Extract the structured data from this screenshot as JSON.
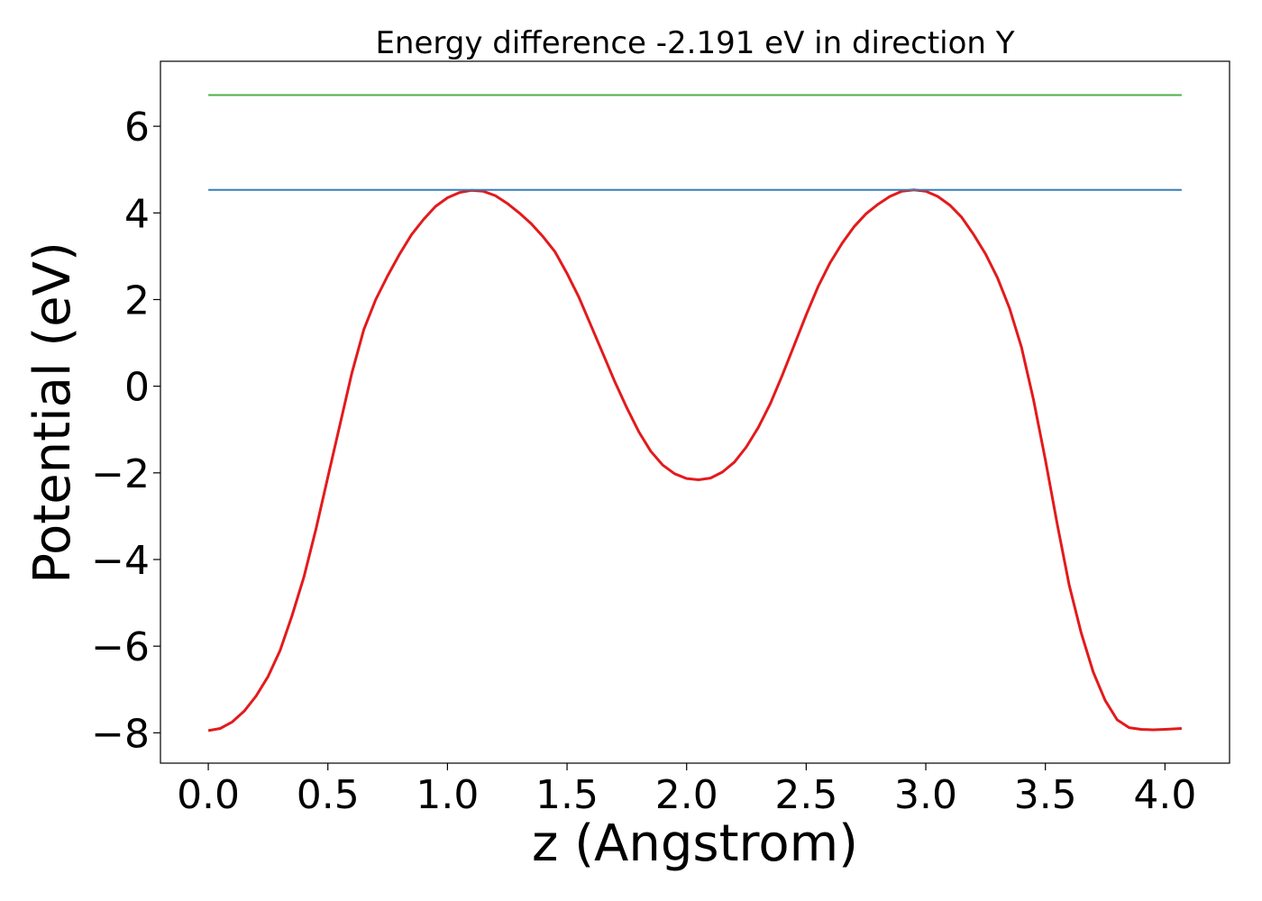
{
  "chart_data": {
    "type": "line",
    "title": "Energy difference -2.191 eV in direction Y",
    "xlabel": "z (Angstrom)",
    "ylabel": "Potential (eV)",
    "xlim": [
      -0.2,
      4.27
    ],
    "ylim": [
      -8.7,
      7.5
    ],
    "xticks": [
      0.0,
      0.5,
      1.0,
      1.5,
      2.0,
      2.5,
      3.0,
      3.5,
      4.0
    ],
    "xtick_labels": [
      "0.0",
      "0.5",
      "1.0",
      "1.5",
      "2.0",
      "2.5",
      "3.0",
      "3.5",
      "4.0"
    ],
    "yticks": [
      -8,
      -6,
      -4,
      -2,
      0,
      2,
      4,
      6
    ],
    "ytick_labels": [
      "−8",
      "−6",
      "−4",
      "−2",
      "0",
      "2",
      "4",
      "6"
    ],
    "grid": false,
    "series": [
      {
        "color": "#e31a1c",
        "x": [
          0.0,
          0.05,
          0.1,
          0.15,
          0.2,
          0.25,
          0.3,
          0.35,
          0.4,
          0.45,
          0.5,
          0.55,
          0.6,
          0.65,
          0.7,
          0.75,
          0.8,
          0.85,
          0.9,
          0.95,
          1.0,
          1.05,
          1.1,
          1.15,
          1.2,
          1.25,
          1.3,
          1.35,
          1.4,
          1.45,
          1.5,
          1.55,
          1.6,
          1.65,
          1.7,
          1.75,
          1.8,
          1.85,
          1.9,
          1.95,
          2.0,
          2.05,
          2.1,
          2.15,
          2.2,
          2.25,
          2.3,
          2.35,
          2.4,
          2.45,
          2.5,
          2.55,
          2.6,
          2.65,
          2.7,
          2.75,
          2.8,
          2.85,
          2.9,
          2.95,
          3.0,
          3.05,
          3.1,
          3.15,
          3.2,
          3.25,
          3.3,
          3.35,
          3.4,
          3.45,
          3.5,
          3.55,
          3.6,
          3.65,
          3.7,
          3.75,
          3.8,
          3.85,
          3.9,
          3.95,
          4.0,
          4.07
        ],
        "y": [
          -7.95,
          -7.9,
          -7.75,
          -7.5,
          -7.15,
          -6.7,
          -6.1,
          -5.3,
          -4.4,
          -3.3,
          -2.1,
          -0.9,
          0.3,
          1.3,
          2.0,
          2.55,
          3.05,
          3.5,
          3.85,
          4.15,
          4.35,
          4.47,
          4.52,
          4.5,
          4.4,
          4.22,
          4.0,
          3.75,
          3.45,
          3.1,
          2.6,
          2.05,
          1.4,
          0.75,
          0.1,
          -0.5,
          -1.05,
          -1.5,
          -1.82,
          -2.02,
          -2.13,
          -2.16,
          -2.12,
          -1.98,
          -1.75,
          -1.4,
          -0.95,
          -0.4,
          0.25,
          0.95,
          1.65,
          2.3,
          2.85,
          3.3,
          3.68,
          3.98,
          4.2,
          4.38,
          4.5,
          4.53,
          4.5,
          4.38,
          4.18,
          3.9,
          3.5,
          3.05,
          2.5,
          1.8,
          0.9,
          -0.3,
          -1.7,
          -3.2,
          -4.6,
          -5.7,
          -6.6,
          -7.25,
          -7.7,
          -7.88,
          -7.92,
          -7.93,
          -7.92,
          -7.9
        ]
      },
      {
        "color": "#377eb8",
        "x": [
          0.0,
          4.07
        ],
        "y": [
          4.53,
          4.53
        ]
      },
      {
        "color": "#4daf4a",
        "x": [
          0.0,
          4.07
        ],
        "y": [
          6.72,
          6.72
        ]
      }
    ]
  }
}
